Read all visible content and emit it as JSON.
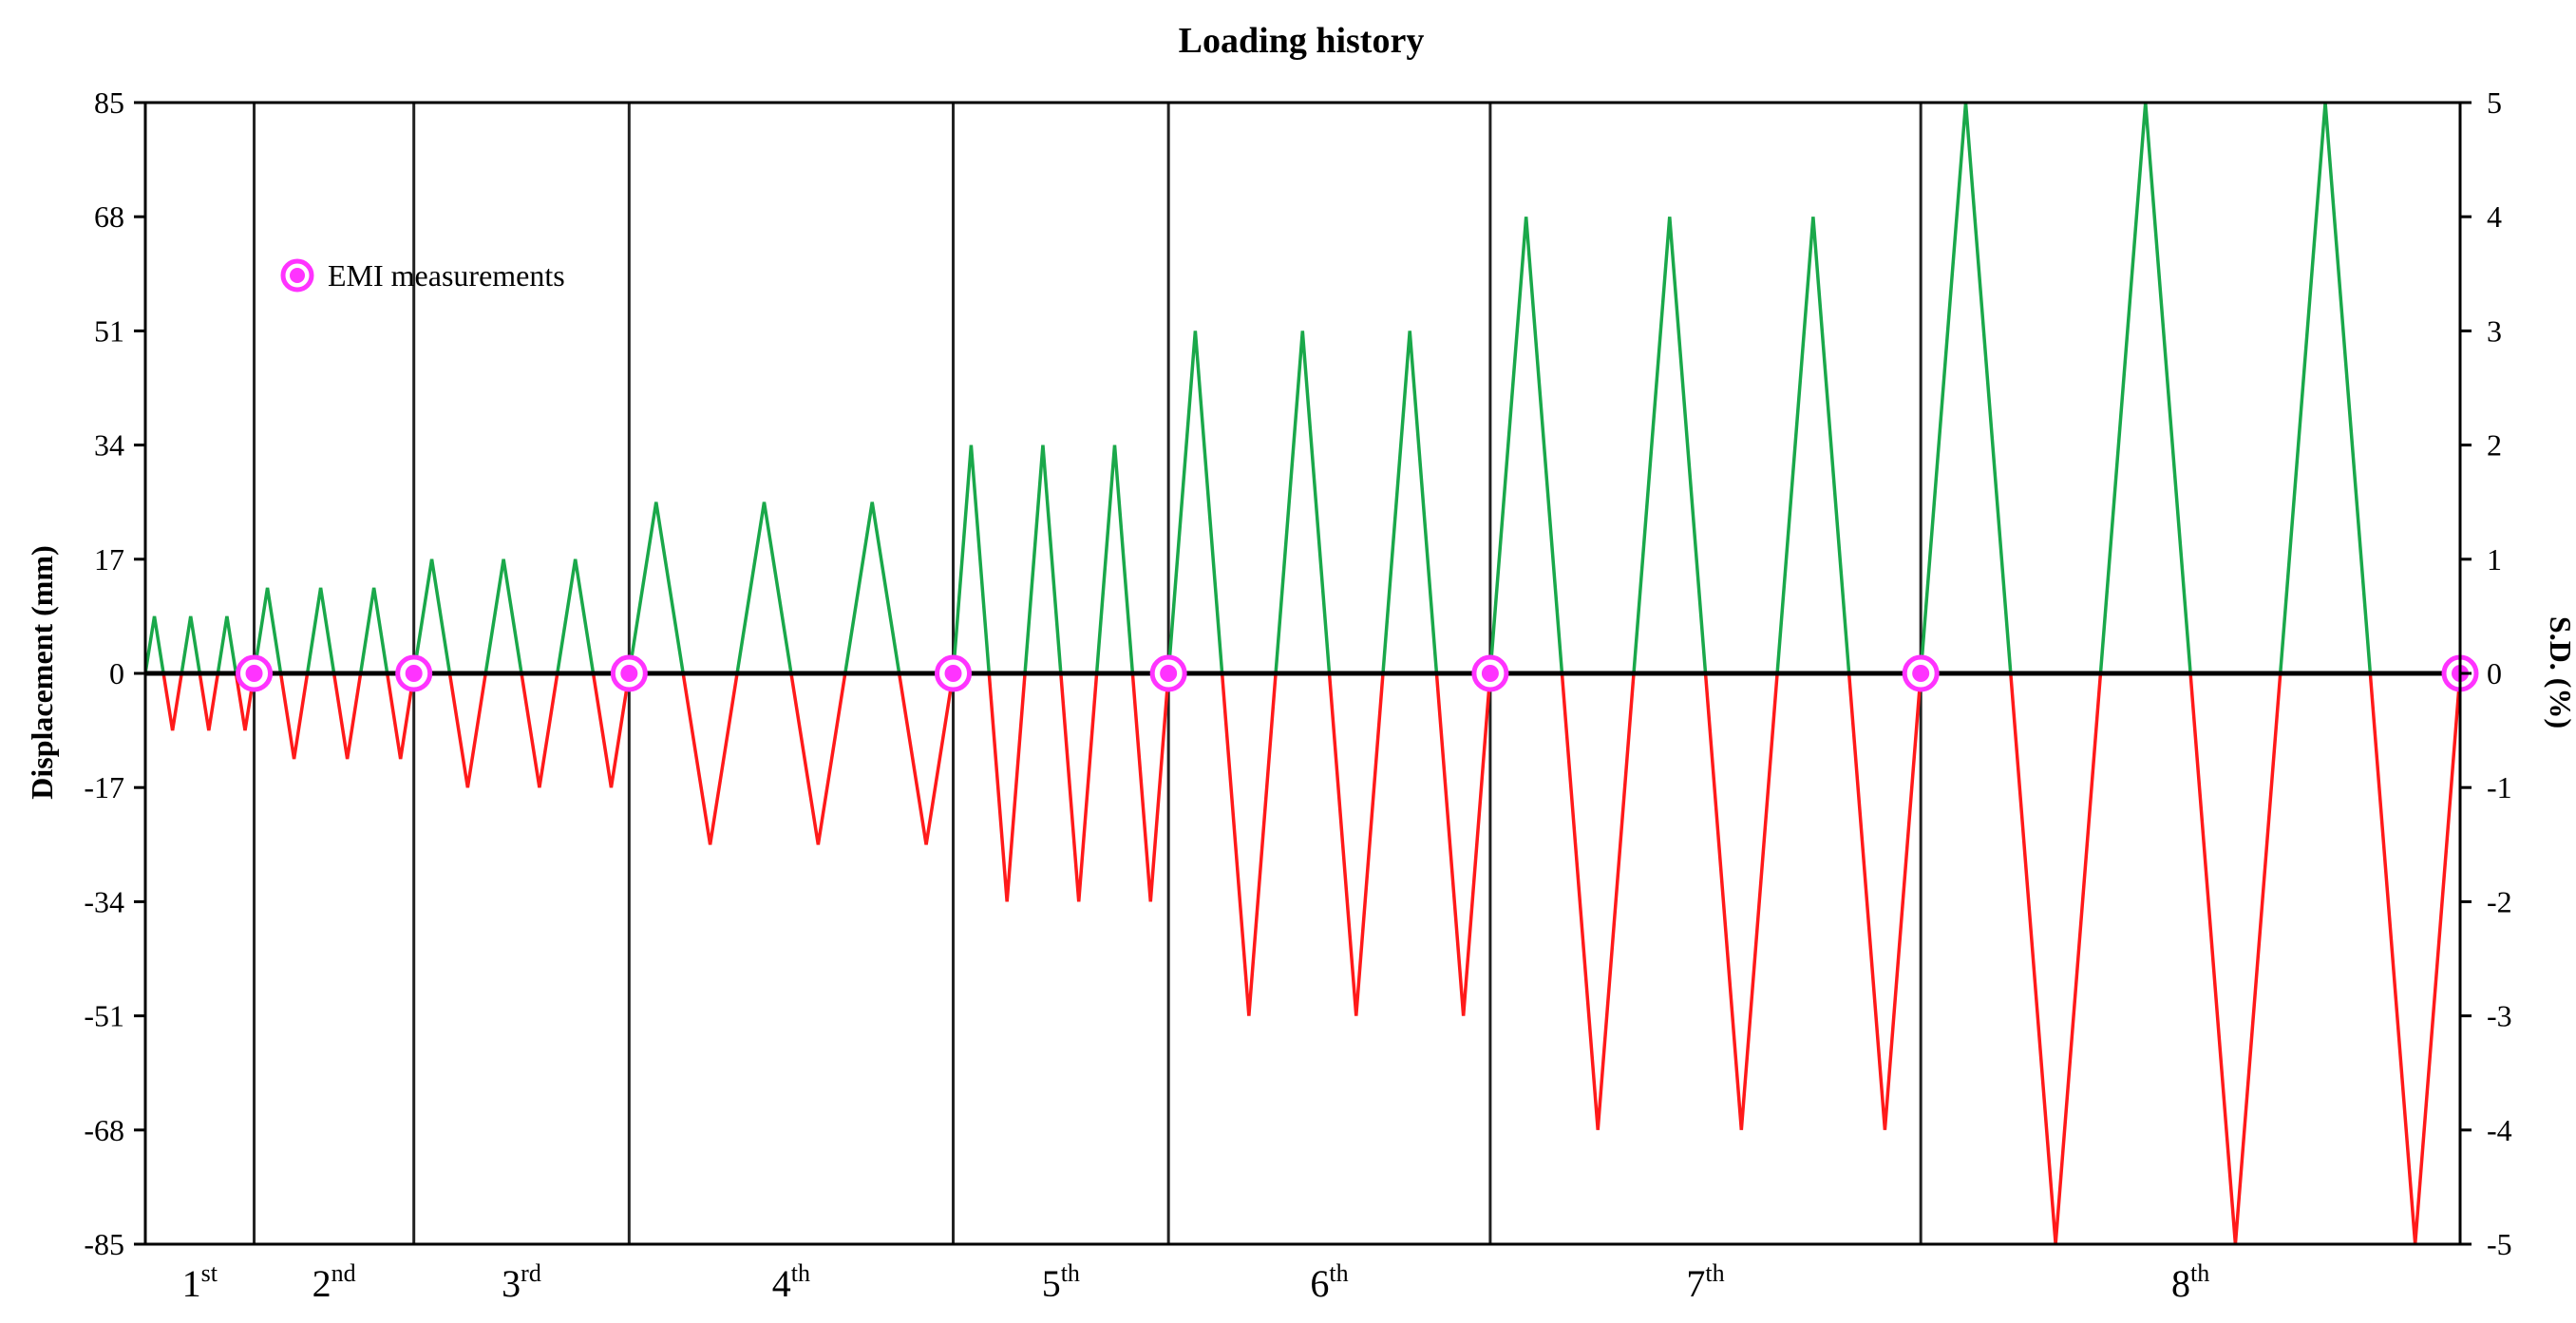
{
  "chart_data": {
    "type": "line",
    "title": "Loading history",
    "ylabel_left": "Displacement (mm)",
    "ylabel_right": "S.D. (%)",
    "ylim_left": [
      -85,
      85
    ],
    "ylim_right": [
      -5,
      5
    ],
    "yticks_left": [
      "85",
      "68",
      "51",
      "34",
      "17",
      "0",
      "-17",
      "-34",
      "-51",
      "-68",
      "-85"
    ],
    "yticks_right": [
      "5",
      "4",
      "3",
      "2",
      "1",
      "0",
      "-1",
      "-2",
      "-3",
      "-4",
      "-5"
    ],
    "xlim": [
      0,
      1000
    ],
    "grid": false,
    "positive_color": "#1aa84a",
    "negative_color": "#ff1a1a",
    "marker_color": "#ff33ff",
    "legend": {
      "label": "EMI measurements",
      "placement": "top-left"
    },
    "stages": [
      {
        "base": "1",
        "sup": "st",
        "amplitude_mm": 8.5,
        "start": 0,
        "end": 47,
        "cycles": 3
      },
      {
        "base": "2",
        "sup": "nd",
        "amplitude_mm": 12.75,
        "start": 47,
        "end": 116,
        "cycles": 3
      },
      {
        "base": "3",
        "sup": "rd",
        "amplitude_mm": 17,
        "start": 116,
        "end": 209,
        "cycles": 3
      },
      {
        "base": "4",
        "sup": "th",
        "amplitude_mm": 25.5,
        "start": 209,
        "end": 349,
        "cycles": 3
      },
      {
        "base": "5",
        "sup": "th",
        "amplitude_mm": 34,
        "start": 349,
        "end": 442,
        "cycles": 3
      },
      {
        "base": "6",
        "sup": "th",
        "amplitude_mm": 51,
        "start": 442,
        "end": 581,
        "cycles": 3
      },
      {
        "base": "7",
        "sup": "th",
        "amplitude_mm": 68,
        "start": 581,
        "end": 767,
        "cycles": 3
      },
      {
        "base": "8",
        "sup": "th",
        "amplitude_mm": 85,
        "start": 767,
        "end": 1000,
        "cycles": 3
      }
    ],
    "emi_measurements_at": [
      47,
      116,
      209,
      349,
      442,
      581,
      767,
      1000
    ]
  }
}
